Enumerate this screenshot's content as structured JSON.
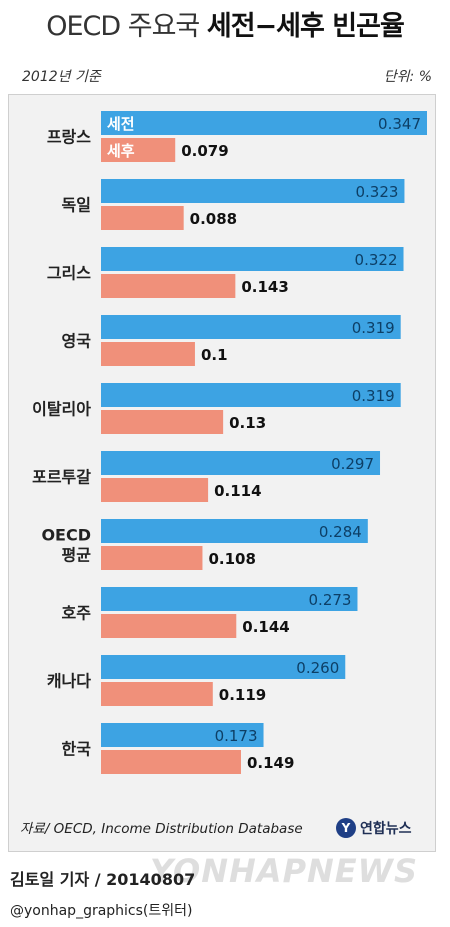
{
  "header": {
    "title_light": "OECD 주요국",
    "title_bold": "세전−세후 빈곤율",
    "subtitle": "2012년 기준",
    "unit": "단위: %"
  },
  "footer": {
    "source": "자료/ OECD, Income Distribution Database",
    "brand": "연합뉴스",
    "reporter": "김토일 기자 / 20140807",
    "twitter": "@yonhap_graphics(트위터)",
    "watermark": "YONHAPNEWS"
  },
  "chart_data": {
    "type": "bar",
    "orientation": "horizontal",
    "categories": [
      "프랑스",
      "독일",
      "그리스",
      "영국",
      "이탈리아",
      "포르투갈",
      "OECD\n평균",
      "호주",
      "캐나다",
      "한국"
    ],
    "series": [
      {
        "name": "세전",
        "color": "#3da3e3",
        "labels": [
          "0.347",
          "0.323",
          "0.322",
          "0.319",
          "0.319",
          "0.297",
          "0.284",
          "0.273",
          "0.260",
          "0.173"
        ],
        "values": [
          0.347,
          0.323,
          0.322,
          0.319,
          0.319,
          0.297,
          0.284,
          0.273,
          0.26,
          0.173
        ]
      },
      {
        "name": "세후",
        "color": "#f0907a",
        "labels": [
          "0.079",
          "0.088",
          "0.143",
          "0.1",
          "0.13",
          "0.114",
          "0.108",
          "0.144",
          "0.119",
          "0.149"
        ],
        "values": [
          0.079,
          0.088,
          0.143,
          0.1,
          0.13,
          0.114,
          0.108,
          0.144,
          0.119,
          0.149
        ]
      }
    ],
    "xlim": [
      0,
      0.347
    ],
    "grid": false,
    "legend": "inside-first-bars"
  }
}
